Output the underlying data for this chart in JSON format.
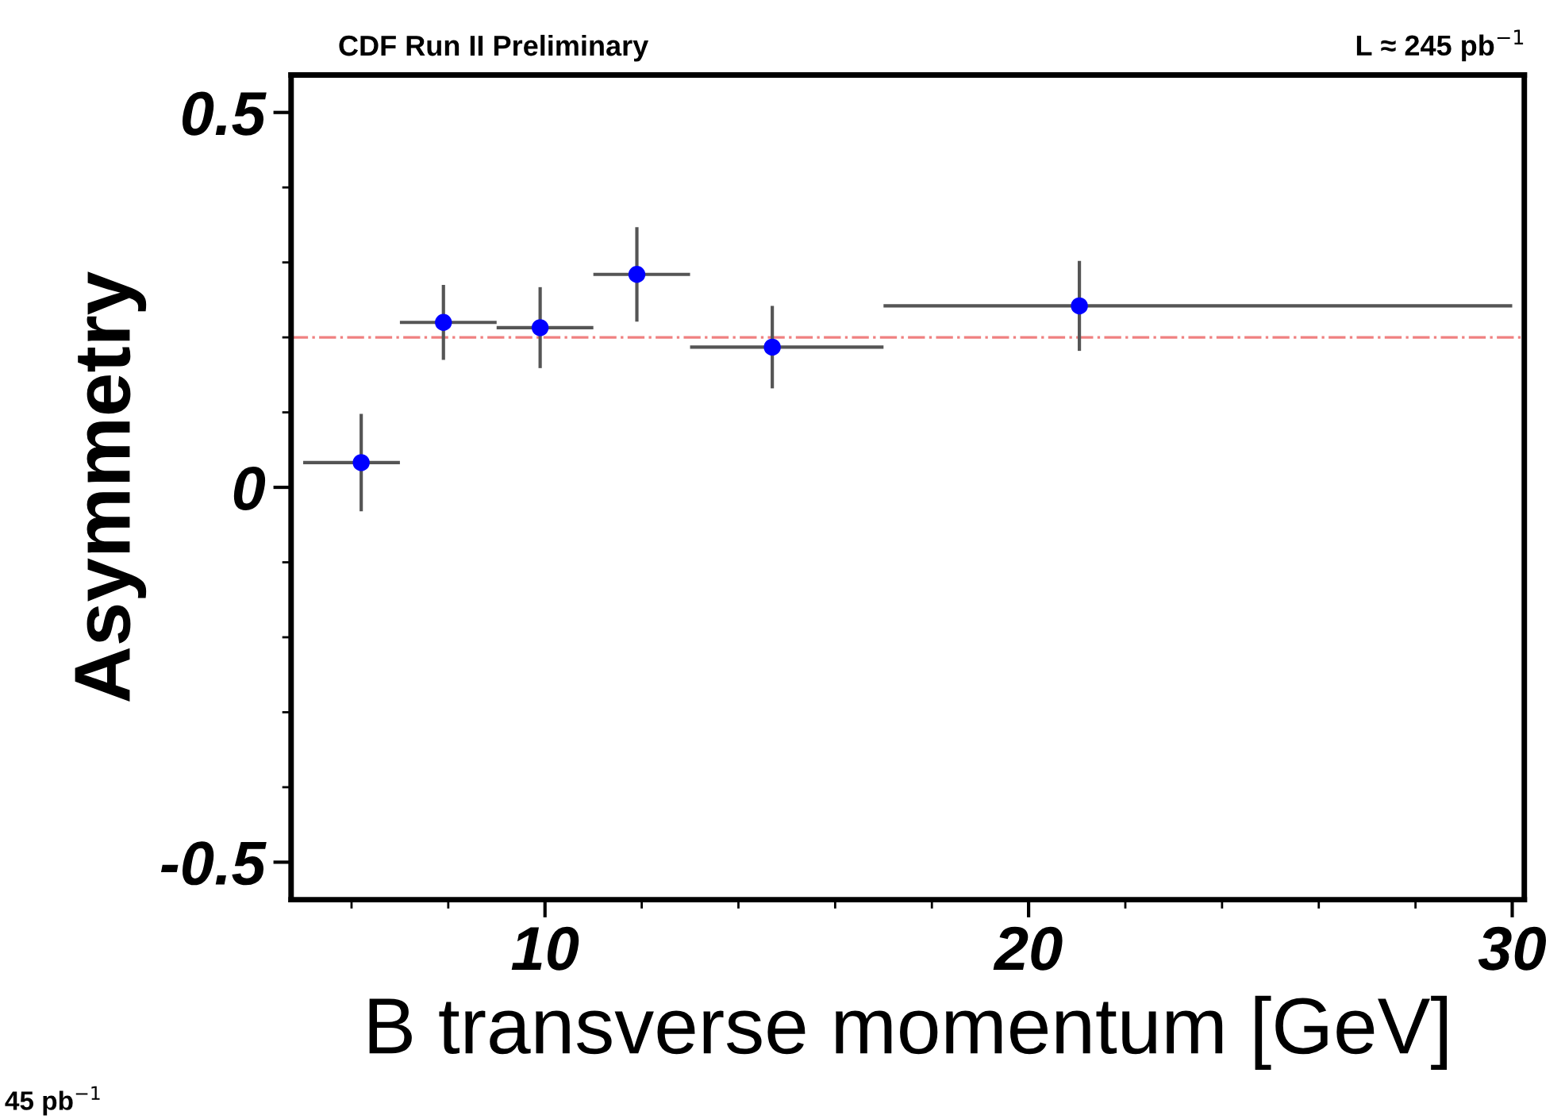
{
  "chart_data": {
    "type": "scatter",
    "title": "CDF Run II Preliminary",
    "subtitle": "L ≈ 245 pb$^{−1}$",
    "xlabel": "B transverse momentum [GeV]",
    "ylabel": "Asymmetry",
    "x": [
      6.2,
      7.9,
      9.9,
      11.9,
      14.7,
      21.05
    ],
    "series": [
      {
        "color": "#0000ff",
        "values": [
          0.033,
          0.22,
          0.213,
          0.284,
          0.187,
          0.242
        ],
        "errors": [
          0.065,
          0.05,
          0.054,
          0.063,
          0.055,
          0.06
        ],
        "xerrors": [
          [
            5,
            7
          ],
          [
            7,
            9
          ],
          [
            9,
            11
          ],
          [
            11,
            13
          ],
          [
            13,
            17
          ],
          [
            17,
            30
          ]
        ]
      }
    ],
    "xlim": [
      4.75,
      30.25
    ],
    "ylim": [
      -0.55,
      0.55
    ],
    "xticks": [
      10,
      20,
      30
    ],
    "yticks": [
      {
        "value": -0.5,
        "label": "-0.5"
      },
      0,
      0.5
    ],
    "ref_lines": [
      {
        "axis": "y",
        "value": 0.2,
        "color": "#f08080",
        "line_style": "dashdot"
      }
    ],
    "marker": "circle",
    "grid": false,
    "annotations": [
      "45 pb$^{−1}$"
    ]
  }
}
